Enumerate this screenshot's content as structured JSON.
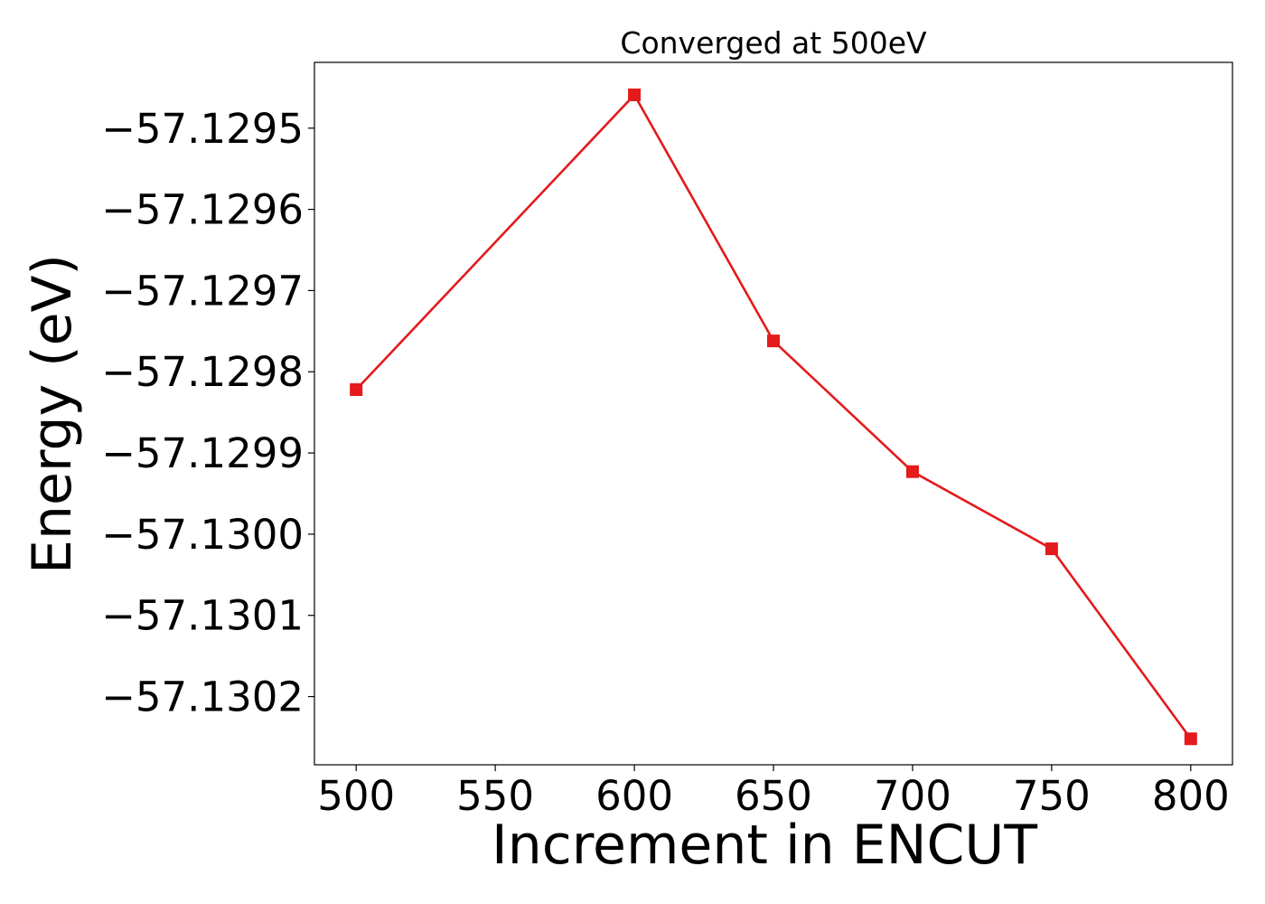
{
  "chart_data": {
    "type": "line",
    "title": "Converged at 500eV",
    "xlabel": "Increment in ENCUT",
    "ylabel": "Energy (eV)",
    "x": [
      500,
      600,
      650,
      700,
      750,
      800
    ],
    "series": [
      {
        "values": [
          -57.129822,
          -57.129459,
          -57.129762,
          -57.129923,
          -57.130018,
          -57.130252
        ],
        "color": "#e41a1c",
        "marker": "square"
      }
    ],
    "xlim": [
      485,
      815
    ],
    "ylim": [
      -57.130284,
      -57.129419
    ],
    "x_ticks": [
      500,
      550,
      600,
      650,
      700,
      750,
      800
    ],
    "x_tick_labels": [
      "500",
      "550",
      "600",
      "650",
      "700",
      "750",
      "800"
    ],
    "y_ticks": [
      -57.1295,
      -57.1296,
      -57.1297,
      -57.1298,
      -57.1299,
      -57.13,
      -57.1301,
      -57.1302
    ],
    "y_tick_labels": [
      "−57.1295",
      "−57.1296",
      "−57.1297",
      "−57.1298",
      "−57.1299",
      "−57.1300",
      "−57.1301",
      "−57.1302"
    ],
    "grid": false,
    "legend": "none"
  }
}
